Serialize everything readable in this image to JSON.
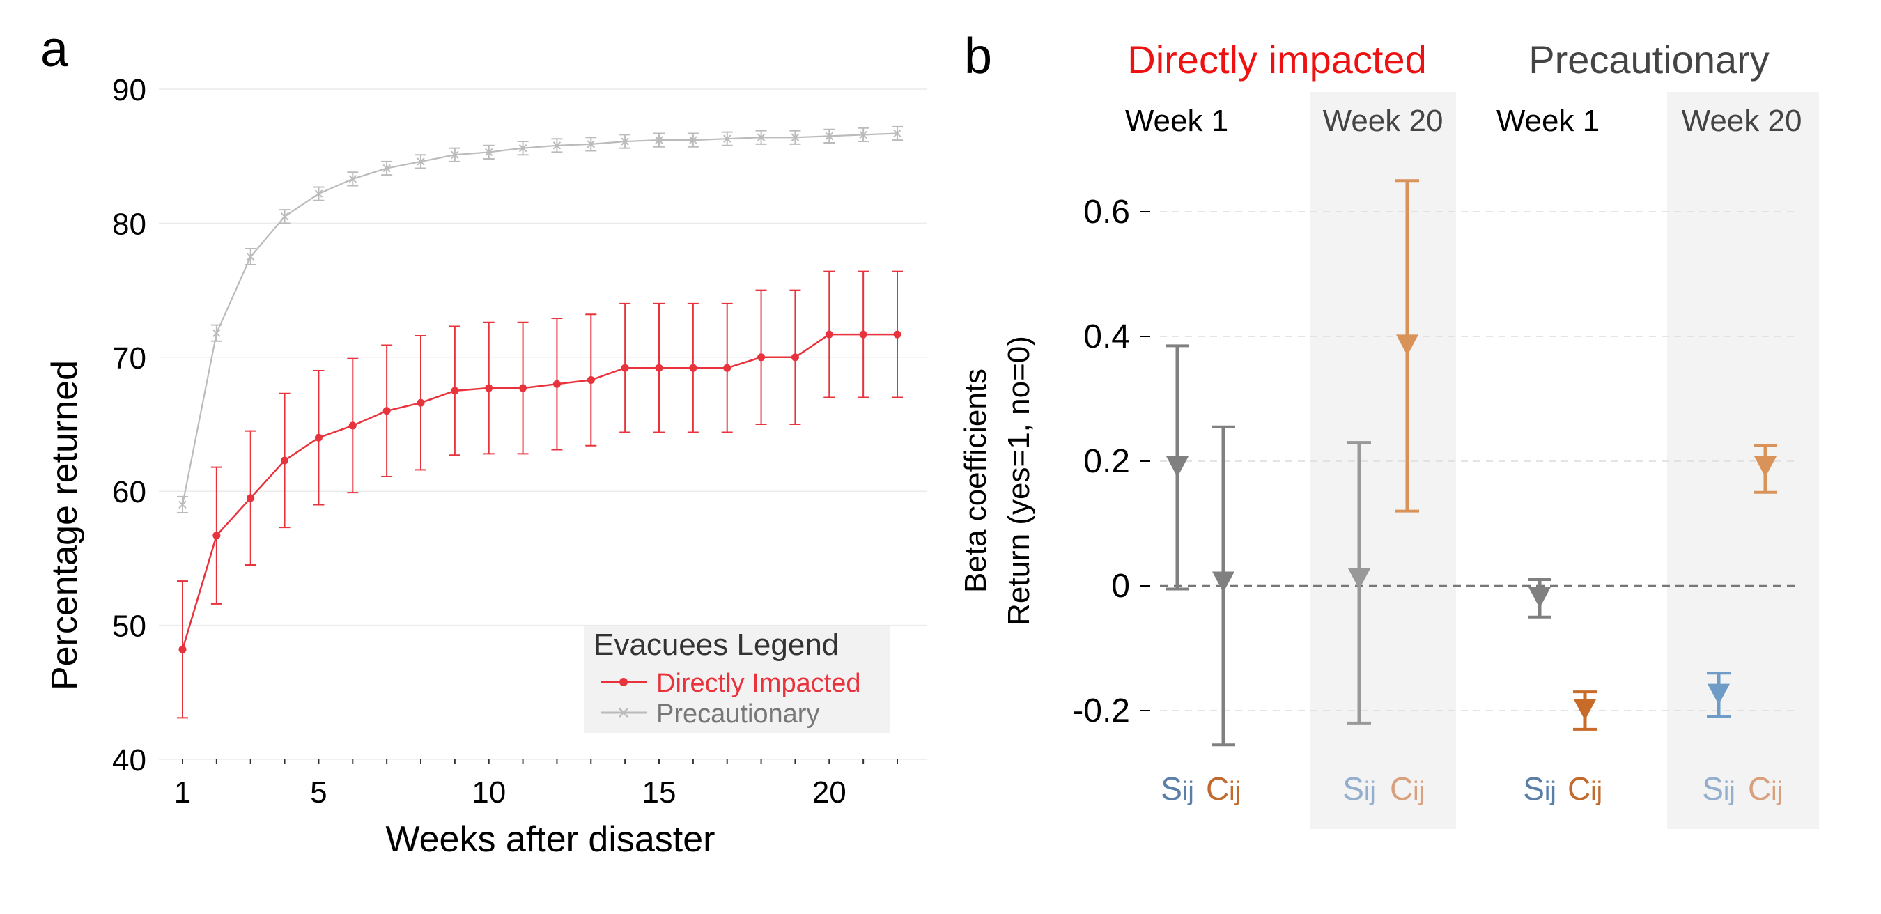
{
  "panel_a_label": "a",
  "panel_b_label": "b",
  "chart_data": [
    {
      "type": "line",
      "panel": "a",
      "xlabel": "Weeks after disaster",
      "ylabel": "Percentage returned",
      "xlim": [
        1,
        22
      ],
      "ylim": [
        40,
        90
      ],
      "xticks": [
        1,
        5,
        10,
        15,
        20
      ],
      "yticks": [
        40,
        50,
        60,
        70,
        80,
        90
      ],
      "grid": true,
      "legend": {
        "title": "Evacuees Legend",
        "position": "bottom-right",
        "labels": [
          "Directly Impacted",
          "Precautionary"
        ]
      },
      "x": [
        1,
        2,
        3,
        4,
        5,
        6,
        7,
        8,
        9,
        10,
        11,
        12,
        13,
        14,
        15,
        16,
        17,
        18,
        19,
        20,
        21,
        22
      ],
      "series": [
        {
          "name": "Directly Impacted",
          "color": "#e8323c",
          "marker": "dot",
          "values": [
            48.2,
            56.7,
            59.5,
            62.3,
            64.0,
            64.9,
            66.0,
            66.6,
            67.5,
            67.7,
            67.7,
            68.0,
            68.3,
            69.2,
            69.2,
            69.2,
            69.2,
            70.0,
            70.0,
            71.7,
            71.7,
            71.7
          ],
          "err": [
            5.1,
            5.1,
            5.0,
            5.0,
            5.0,
            5.0,
            4.9,
            5.0,
            4.8,
            4.9,
            4.9,
            4.9,
            4.9,
            4.8,
            4.8,
            4.8,
            4.8,
            5.0,
            5.0,
            4.7,
            4.7,
            4.7
          ]
        },
        {
          "name": "Precautionary",
          "color": "#bbbbbb",
          "marker": "x",
          "values": [
            59.0,
            71.8,
            77.5,
            80.5,
            82.2,
            83.3,
            84.1,
            84.6,
            85.1,
            85.3,
            85.6,
            85.8,
            85.9,
            86.1,
            86.2,
            86.2,
            86.3,
            86.4,
            86.4,
            86.5,
            86.6,
            86.7
          ],
          "err": [
            0.6,
            0.6,
            0.6,
            0.5,
            0.5,
            0.5,
            0.5,
            0.5,
            0.5,
            0.5,
            0.5,
            0.5,
            0.5,
            0.5,
            0.5,
            0.5,
            0.5,
            0.5,
            0.5,
            0.5,
            0.5,
            0.5
          ]
        }
      ]
    },
    {
      "type": "scatter",
      "panel": "b",
      "ylabel_line1": "Beta coefficients",
      "ylabel_line2": "Return  (yes=1, no=0)",
      "ylim": [
        -0.3,
        0.66
      ],
      "yticks": [
        -0.2,
        0,
        0.2,
        0.4,
        0.6
      ],
      "ytick_labels": [
        "-0.2",
        "0",
        "0.2",
        "0.4",
        "0.6"
      ],
      "groups": [
        {
          "title": "Directly impacted",
          "color": "#ee1111",
          "weeks": [
            "Week 1",
            "Week 20"
          ]
        },
        {
          "title": "Precautionary",
          "color": "#444444",
          "weeks": [
            "Week 1",
            "Week 20"
          ]
        }
      ],
      "shaded_week": "Week 20",
      "variables": [
        {
          "base": "S",
          "sub": "ij"
        },
        {
          "base": "C",
          "sub": "ij"
        }
      ],
      "points": [
        {
          "group": "Directly impacted",
          "week": "Week 1",
          "var": "Sij",
          "value": 0.19,
          "low": -0.005,
          "high": 0.385,
          "color": "#808080"
        },
        {
          "group": "Directly impacted",
          "week": "Week 1",
          "var": "Cij",
          "value": 0.005,
          "low": -0.255,
          "high": 0.255,
          "color": "#808080"
        },
        {
          "group": "Directly impacted",
          "week": "Week 20",
          "var": "Sij",
          "value": 0.01,
          "low": -0.22,
          "high": 0.23,
          "color": "#999999"
        },
        {
          "group": "Directly impacted",
          "week": "Week 20",
          "var": "Cij",
          "value": 0.385,
          "low": 0.12,
          "high": 0.65,
          "color": "#d99258"
        },
        {
          "group": "Precautionary",
          "week": "Week 1",
          "var": "Sij",
          "value": -0.02,
          "low": -0.05,
          "high": 0.01,
          "color": "#808080"
        },
        {
          "group": "Precautionary",
          "week": "Week 1",
          "var": "Cij",
          "value": -0.2,
          "low": -0.23,
          "high": -0.17,
          "color": "#c86a28"
        },
        {
          "group": "Precautionary",
          "week": "Week 20",
          "var": "Sij",
          "value": -0.175,
          "low": -0.21,
          "high": -0.14,
          "color": "#6f9bc7"
        },
        {
          "group": "Precautionary",
          "week": "Week 20",
          "var": "Cij",
          "value": 0.19,
          "low": 0.15,
          "high": 0.225,
          "color": "#d99258"
        }
      ],
      "label_colors": {
        "S_solid": "#5a7ea8",
        "C_solid": "#c06a2e",
        "S_faded": "#94aece",
        "C_faded": "#d9a07e"
      }
    }
  ]
}
